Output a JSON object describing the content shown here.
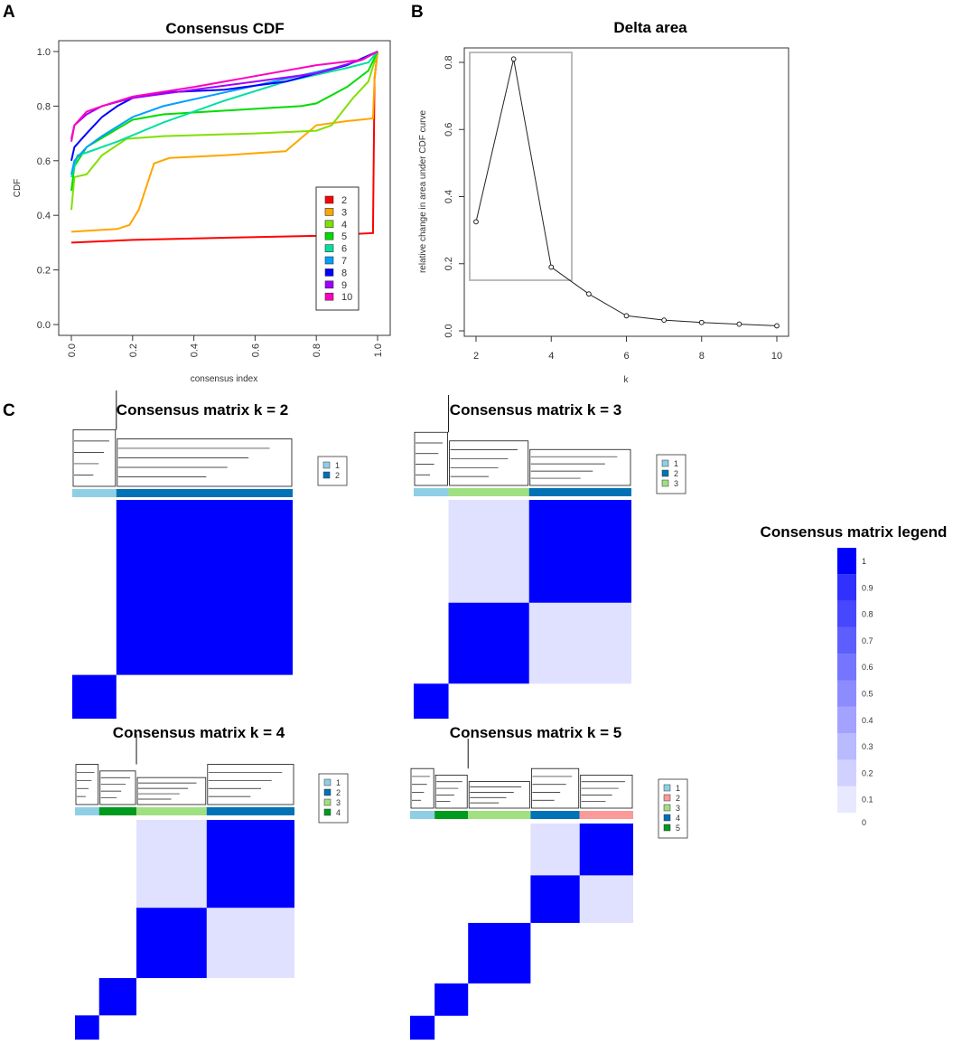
{
  "panels": {
    "a": "A",
    "b": "B",
    "c": "C"
  },
  "chart_data": [
    {
      "type": "line",
      "title": "Consensus CDF",
      "xlabel": "consensus index",
      "ylabel": "CDF",
      "xlim": [
        0,
        1
      ],
      "ylim": [
        0,
        1
      ],
      "xticks": [
        "0.0",
        "0.2",
        "0.4",
        "0.6",
        "0.8",
        "1.0"
      ],
      "yticks": [
        "0.0",
        "0.2",
        "0.4",
        "0.6",
        "0.8",
        "1.0"
      ],
      "legend_position": "bottom-right",
      "series": [
        {
          "name": "2",
          "color": "#ff0000",
          "points": [
            [
              0,
              0.3
            ],
            [
              0.2,
              0.31
            ],
            [
              0.5,
              0.318
            ],
            [
              0.8,
              0.325
            ],
            [
              0.985,
              0.335
            ],
            [
              0.99,
              0.9
            ],
            [
              1,
              1
            ]
          ]
        },
        {
          "name": "3",
          "color": "#ffa500",
          "points": [
            [
              0,
              0.34
            ],
            [
              0.15,
              0.35
            ],
            [
              0.19,
              0.365
            ],
            [
              0.22,
              0.42
            ],
            [
              0.27,
              0.59
            ],
            [
              0.32,
              0.61
            ],
            [
              0.5,
              0.62
            ],
            [
              0.7,
              0.635
            ],
            [
              0.8,
              0.73
            ],
            [
              0.9,
              0.745
            ],
            [
              0.985,
              0.755
            ],
            [
              0.99,
              0.9
            ],
            [
              1,
              1
            ]
          ]
        },
        {
          "name": "4",
          "color": "#80e000",
          "points": [
            [
              0,
              0.42
            ],
            [
              0.01,
              0.54
            ],
            [
              0.05,
              0.55
            ],
            [
              0.1,
              0.62
            ],
            [
              0.18,
              0.68
            ],
            [
              0.3,
              0.69
            ],
            [
              0.6,
              0.7
            ],
            [
              0.8,
              0.71
            ],
            [
              0.85,
              0.73
            ],
            [
              0.92,
              0.83
            ],
            [
              0.97,
              0.89
            ],
            [
              1,
              1
            ]
          ]
        },
        {
          "name": "5",
          "color": "#00dd00",
          "points": [
            [
              0,
              0.49
            ],
            [
              0.01,
              0.58
            ],
            [
              0.05,
              0.65
            ],
            [
              0.2,
              0.75
            ],
            [
              0.3,
              0.77
            ],
            [
              0.6,
              0.79
            ],
            [
              0.75,
              0.8
            ],
            [
              0.8,
              0.81
            ],
            [
              0.9,
              0.87
            ],
            [
              0.97,
              0.93
            ],
            [
              1,
              1
            ]
          ]
        },
        {
          "name": "6",
          "color": "#00e0a0",
          "points": [
            [
              0,
              0.54
            ],
            [
              0.02,
              0.62
            ],
            [
              0.05,
              0.63
            ],
            [
              0.15,
              0.67
            ],
            [
              0.3,
              0.74
            ],
            [
              0.5,
              0.82
            ],
            [
              0.7,
              0.89
            ],
            [
              0.9,
              0.94
            ],
            [
              0.97,
              0.96
            ],
            [
              1,
              1
            ]
          ]
        },
        {
          "name": "7",
          "color": "#00a0ff",
          "points": [
            [
              0,
              0.55
            ],
            [
              0.01,
              0.6
            ],
            [
              0.05,
              0.65
            ],
            [
              0.1,
              0.69
            ],
            [
              0.2,
              0.76
            ],
            [
              0.3,
              0.8
            ],
            [
              0.5,
              0.85
            ],
            [
              0.7,
              0.9
            ],
            [
              0.9,
              0.95
            ],
            [
              1,
              1
            ]
          ]
        },
        {
          "name": "8",
          "color": "#0000ff",
          "points": [
            [
              0,
              0.6
            ],
            [
              0.01,
              0.65
            ],
            [
              0.05,
              0.7
            ],
            [
              0.1,
              0.76
            ],
            [
              0.15,
              0.8
            ],
            [
              0.2,
              0.83
            ],
            [
              0.3,
              0.85
            ],
            [
              0.5,
              0.86
            ],
            [
              0.7,
              0.89
            ],
            [
              0.9,
              0.95
            ],
            [
              1,
              1
            ]
          ]
        },
        {
          "name": "9",
          "color": "#a000ff",
          "points": [
            [
              0,
              0.68
            ],
            [
              0.01,
              0.73
            ],
            [
              0.05,
              0.77
            ],
            [
              0.1,
              0.8
            ],
            [
              0.2,
              0.83
            ],
            [
              0.4,
              0.86
            ],
            [
              0.6,
              0.89
            ],
            [
              0.8,
              0.92
            ],
            [
              0.95,
              0.97
            ],
            [
              1,
              1
            ]
          ]
        },
        {
          "name": "10",
          "color": "#ff00c0",
          "points": [
            [
              0,
              0.67
            ],
            [
              0.01,
              0.73
            ],
            [
              0.05,
              0.78
            ],
            [
              0.1,
              0.8
            ],
            [
              0.2,
              0.835
            ],
            [
              0.4,
              0.87
            ],
            [
              0.6,
              0.91
            ],
            [
              0.8,
              0.95
            ],
            [
              0.95,
              0.97
            ],
            [
              1,
              1
            ]
          ]
        }
      ]
    },
    {
      "type": "line",
      "title": "Delta area",
      "xlabel": "k",
      "ylabel": "relative change in area under CDF curve",
      "xlim": [
        2,
        10
      ],
      "ylim": [
        0,
        0.8
      ],
      "xticks": [
        "2",
        "4",
        "6",
        "8",
        "10"
      ],
      "yticks": [
        "0.0",
        "0.2",
        "0.4",
        "0.6",
        "0.8"
      ],
      "x": [
        2,
        3,
        4,
        5,
        6,
        7,
        8,
        9,
        10
      ],
      "y": [
        0.325,
        0.81,
        0.19,
        0.11,
        0.045,
        0.032,
        0.025,
        0.02,
        0.015
      ],
      "highlight_box_k": [
        2,
        4
      ]
    },
    {
      "type": "heatmap",
      "matrices": [
        {
          "title": "Consensus matrix k = 2",
          "legend": [
            "1",
            "2"
          ],
          "order": [
            1,
            2
          ],
          "fractions": [
            0.2,
            0.8
          ]
        },
        {
          "title": "Consensus matrix k = 3",
          "legend": [
            "1",
            "2",
            "3"
          ],
          "order": [
            1,
            3,
            2
          ],
          "fractions": [
            0.16,
            0.37,
            0.47
          ]
        },
        {
          "title": "Consensus matrix k = 4",
          "legend": [
            "1",
            "2",
            "3",
            "4"
          ],
          "order": [
            1,
            4,
            3,
            2
          ],
          "fractions": [
            0.11,
            0.17,
            0.32,
            0.4
          ]
        },
        {
          "title": "Consensus matrix k = 5",
          "legend": [
            "1",
            "2",
            "3",
            "4",
            "5"
          ],
          "order": [
            1,
            5,
            3,
            4,
            2
          ],
          "fractions": [
            0.11,
            0.15,
            0.28,
            0.22,
            0.24
          ]
        }
      ],
      "cluster_colors": {
        "1": "#8ecfe6",
        "2_k2": "#0072b5",
        "2_k3": "#0072b5",
        "2_k4": "#0072b5",
        "2_k5": "#fb9a99",
        "3": "#a0e080",
        "4_k4": "#009a1e",
        "4_k5": "#0072b5",
        "5": "#009a1e"
      },
      "colorbar": {
        "title": "Consensus matrix legend",
        "labels": [
          "1",
          "0.9",
          "0.8",
          "0.7",
          "0.6",
          "0.5",
          "0.4",
          "0.3",
          "0.2",
          "0.1",
          "0"
        ],
        "max_color": "#0000ff"
      }
    }
  ]
}
